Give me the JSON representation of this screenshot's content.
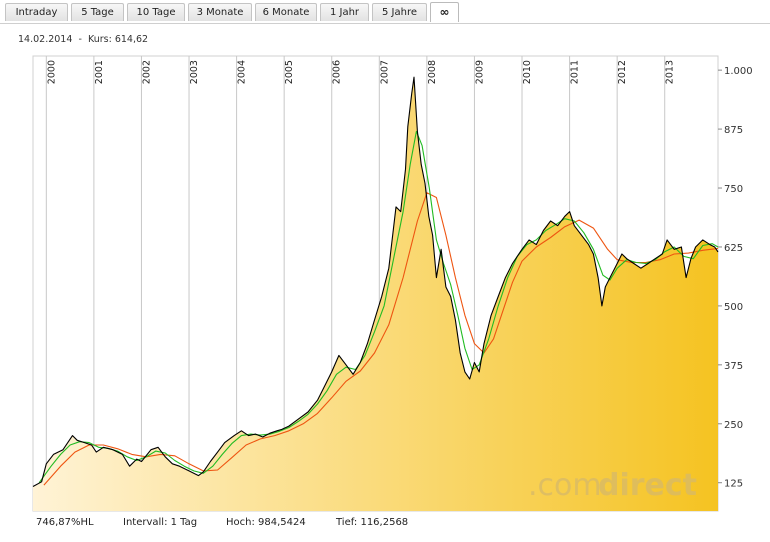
{
  "tabs": [
    {
      "label": "Intraday"
    },
    {
      "label": "5 Tage"
    },
    {
      "label": "10 Tage"
    },
    {
      "label": "3 Monate"
    },
    {
      "label": "6 Monate"
    },
    {
      "label": "1 Jahr"
    },
    {
      "label": "5 Jahre"
    },
    {
      "label": "∞"
    }
  ],
  "active_tab": "∞",
  "header": {
    "date": "14.02.2014",
    "separator": "-",
    "kurs_label": "Kurs:",
    "kurs_value": "614,62"
  },
  "footer": {
    "change": "746,87%HL",
    "intervall_label": "Intervall:",
    "intervall_value": "1 Tag",
    "hoch_label": "Hoch:",
    "hoch_value": "984,5424",
    "tief_label": "Tief:",
    "tief_value": "116,2568"
  },
  "watermark": {
    "part1": ".com",
    "part2": "direct"
  },
  "colors": {
    "price": "#000000",
    "ma_short": "#22bb22",
    "ma_long": "#ee5511",
    "fill_light": "#fff3d6",
    "fill_dark": "#f5c321"
  },
  "chart_data": {
    "type": "line",
    "x_unit": "year",
    "x_range": [
      1999.72,
      2014.12
    ],
    "y_range": [
      65,
      1030
    ],
    "y_ticks": [
      125,
      250,
      375,
      500,
      625,
      750,
      875,
      1000
    ],
    "y_tick_labels": [
      "125",
      "250",
      "375",
      "500",
      "625",
      "750",
      "875",
      "1.000"
    ],
    "x_ticks": [
      2000,
      2001,
      2002,
      2003,
      2004,
      2005,
      2006,
      2007,
      2008,
      2009,
      2010,
      2011,
      2012,
      2013
    ],
    "grid": "vertical",
    "series": [
      {
        "values": [
          [
            1999.72,
            117
          ],
          [
            1999.9,
            127
          ],
          [
            2000.0,
            165
          ],
          [
            2000.15,
            185
          ],
          [
            2000.35,
            195
          ],
          [
            2000.55,
            225
          ],
          [
            2000.65,
            215
          ],
          [
            2000.8,
            210
          ],
          [
            2000.95,
            205
          ],
          [
            2001.05,
            190
          ],
          [
            2001.2,
            200
          ],
          [
            2001.4,
            195
          ],
          [
            2001.6,
            185
          ],
          [
            2001.75,
            160
          ],
          [
            2001.9,
            175
          ],
          [
            2002.0,
            170
          ],
          [
            2002.2,
            195
          ],
          [
            2002.35,
            200
          ],
          [
            2002.5,
            180
          ],
          [
            2002.65,
            165
          ],
          [
            2002.8,
            160
          ],
          [
            2003.0,
            150
          ],
          [
            2003.2,
            140
          ],
          [
            2003.3,
            148
          ],
          [
            2003.45,
            170
          ],
          [
            2003.6,
            190
          ],
          [
            2003.75,
            210
          ],
          [
            2003.95,
            225
          ],
          [
            2004.1,
            235
          ],
          [
            2004.25,
            225
          ],
          [
            2004.4,
            228
          ],
          [
            2004.55,
            222
          ],
          [
            2004.7,
            230
          ],
          [
            2004.85,
            235
          ],
          [
            2004.95,
            238
          ],
          [
            2005.1,
            245
          ],
          [
            2005.3,
            260
          ],
          [
            2005.5,
            275
          ],
          [
            2005.7,
            300
          ],
          [
            2005.85,
            330
          ],
          [
            2006.0,
            360
          ],
          [
            2006.15,
            395
          ],
          [
            2006.3,
            375
          ],
          [
            2006.45,
            355
          ],
          [
            2006.6,
            380
          ],
          [
            2006.75,
            420
          ],
          [
            2006.9,
            470
          ],
          [
            2007.05,
            520
          ],
          [
            2007.2,
            580
          ],
          [
            2007.35,
            710
          ],
          [
            2007.45,
            700
          ],
          [
            2007.55,
            790
          ],
          [
            2007.6,
            880
          ],
          [
            2007.68,
            950
          ],
          [
            2007.73,
            985
          ],
          [
            2007.8,
            870
          ],
          [
            2007.88,
            800
          ],
          [
            2007.96,
            760
          ],
          [
            2008.04,
            690
          ],
          [
            2008.12,
            650
          ],
          [
            2008.2,
            560
          ],
          [
            2008.3,
            620
          ],
          [
            2008.4,
            540
          ],
          [
            2008.5,
            520
          ],
          [
            2008.6,
            470
          ],
          [
            2008.7,
            400
          ],
          [
            2008.8,
            360
          ],
          [
            2008.9,
            345
          ],
          [
            2009.0,
            380
          ],
          [
            2009.1,
            360
          ],
          [
            2009.2,
            420
          ],
          [
            2009.35,
            480
          ],
          [
            2009.5,
            520
          ],
          [
            2009.65,
            560
          ],
          [
            2009.8,
            590
          ],
          [
            2010.0,
            620
          ],
          [
            2010.15,
            640
          ],
          [
            2010.3,
            630
          ],
          [
            2010.45,
            660
          ],
          [
            2010.6,
            680
          ],
          [
            2010.75,
            670
          ],
          [
            2010.9,
            690
          ],
          [
            2011.0,
            700
          ],
          [
            2011.1,
            670
          ],
          [
            2011.25,
            650
          ],
          [
            2011.4,
            630
          ],
          [
            2011.5,
            610
          ],
          [
            2011.6,
            560
          ],
          [
            2011.68,
            500
          ],
          [
            2011.75,
            540
          ],
          [
            2011.85,
            560
          ],
          [
            2012.0,
            590
          ],
          [
            2012.1,
            610
          ],
          [
            2012.2,
            600
          ],
          [
            2012.35,
            590
          ],
          [
            2012.5,
            580
          ],
          [
            2012.65,
            590
          ],
          [
            2012.8,
            600
          ],
          [
            2012.95,
            610
          ],
          [
            2013.05,
            640
          ],
          [
            2013.2,
            620
          ],
          [
            2013.35,
            625
          ],
          [
            2013.45,
            560
          ],
          [
            2013.55,
            600
          ],
          [
            2013.65,
            625
          ],
          [
            2013.8,
            640
          ],
          [
            2013.95,
            630
          ],
          [
            2014.05,
            625
          ],
          [
            2014.12,
            614.62
          ]
        ]
      },
      {
        "values": [
          [
            1999.85,
            125
          ],
          [
            2000.1,
            160
          ],
          [
            2000.3,
            185
          ],
          [
            2000.5,
            205
          ],
          [
            2000.7,
            212
          ],
          [
            2000.9,
            210
          ],
          [
            2001.1,
            200
          ],
          [
            2001.3,
            198
          ],
          [
            2001.5,
            192
          ],
          [
            2001.7,
            180
          ],
          [
            2001.9,
            172
          ],
          [
            2002.1,
            180
          ],
          [
            2002.3,
            192
          ],
          [
            2002.5,
            188
          ],
          [
            2002.7,
            172
          ],
          [
            2002.9,
            160
          ],
          [
            2003.1,
            150
          ],
          [
            2003.3,
            145
          ],
          [
            2003.5,
            160
          ],
          [
            2003.7,
            185
          ],
          [
            2003.9,
            208
          ],
          [
            2004.1,
            225
          ],
          [
            2004.3,
            228
          ],
          [
            2004.5,
            226
          ],
          [
            2004.7,
            228
          ],
          [
            2004.9,
            234
          ],
          [
            2005.1,
            242
          ],
          [
            2005.3,
            255
          ],
          [
            2005.5,
            270
          ],
          [
            2005.7,
            292
          ],
          [
            2005.9,
            320
          ],
          [
            2006.1,
            355
          ],
          [
            2006.3,
            370
          ],
          [
            2006.5,
            365
          ],
          [
            2006.7,
            395
          ],
          [
            2006.9,
            445
          ],
          [
            2007.1,
            500
          ],
          [
            2007.3,
            600
          ],
          [
            2007.5,
            700
          ],
          [
            2007.65,
            800
          ],
          [
            2007.78,
            870
          ],
          [
            2007.9,
            840
          ],
          [
            2008.05,
            750
          ],
          [
            2008.2,
            640
          ],
          [
            2008.35,
            590
          ],
          [
            2008.5,
            545
          ],
          [
            2008.65,
            480
          ],
          [
            2008.8,
            410
          ],
          [
            2008.95,
            365
          ],
          [
            2009.1,
            375
          ],
          [
            2009.3,
            430
          ],
          [
            2009.5,
            500
          ],
          [
            2009.7,
            560
          ],
          [
            2009.9,
            605
          ],
          [
            2010.1,
            630
          ],
          [
            2010.3,
            640
          ],
          [
            2010.5,
            660
          ],
          [
            2010.7,
            672
          ],
          [
            2010.9,
            685
          ],
          [
            2011.1,
            680
          ],
          [
            2011.3,
            655
          ],
          [
            2011.5,
            620
          ],
          [
            2011.7,
            565
          ],
          [
            2011.85,
            555
          ],
          [
            2012.0,
            580
          ],
          [
            2012.2,
            598
          ],
          [
            2012.4,
            592
          ],
          [
            2012.6,
            590
          ],
          [
            2012.8,
            598
          ],
          [
            2013.0,
            615
          ],
          [
            2013.2,
            625
          ],
          [
            2013.4,
            605
          ],
          [
            2013.6,
            600
          ],
          [
            2013.8,
            628
          ],
          [
            2014.0,
            632
          ],
          [
            2014.12,
            625
          ]
        ]
      },
      {
        "values": [
          [
            1999.95,
            120
          ],
          [
            2000.3,
            160
          ],
          [
            2000.6,
            190
          ],
          [
            2000.9,
            205
          ],
          [
            2001.2,
            205
          ],
          [
            2001.5,
            197
          ],
          [
            2001.8,
            185
          ],
          [
            2002.1,
            180
          ],
          [
            2002.4,
            185
          ],
          [
            2002.7,
            182
          ],
          [
            2003.0,
            165
          ],
          [
            2003.3,
            150
          ],
          [
            2003.6,
            152
          ],
          [
            2003.9,
            178
          ],
          [
            2004.2,
            205
          ],
          [
            2004.5,
            218
          ],
          [
            2004.8,
            225
          ],
          [
            2005.1,
            235
          ],
          [
            2005.4,
            250
          ],
          [
            2005.7,
            272
          ],
          [
            2006.0,
            305
          ],
          [
            2006.3,
            340
          ],
          [
            2006.6,
            362
          ],
          [
            2006.9,
            400
          ],
          [
            2007.2,
            460
          ],
          [
            2007.5,
            560
          ],
          [
            2007.8,
            680
          ],
          [
            2008.0,
            740
          ],
          [
            2008.2,
            730
          ],
          [
            2008.4,
            650
          ],
          [
            2008.6,
            560
          ],
          [
            2008.8,
            480
          ],
          [
            2009.0,
            420
          ],
          [
            2009.2,
            400
          ],
          [
            2009.4,
            430
          ],
          [
            2009.6,
            490
          ],
          [
            2009.8,
            550
          ],
          [
            2010.0,
            595
          ],
          [
            2010.3,
            625
          ],
          [
            2010.6,
            645
          ],
          [
            2010.9,
            668
          ],
          [
            2011.2,
            682
          ],
          [
            2011.5,
            665
          ],
          [
            2011.8,
            620
          ],
          [
            2012.0,
            598
          ],
          [
            2012.3,
            592
          ],
          [
            2012.6,
            592
          ],
          [
            2012.9,
            598
          ],
          [
            2013.2,
            610
          ],
          [
            2013.5,
            612
          ],
          [
            2013.8,
            618
          ],
          [
            2014.12,
            622
          ]
        ]
      }
    ]
  }
}
